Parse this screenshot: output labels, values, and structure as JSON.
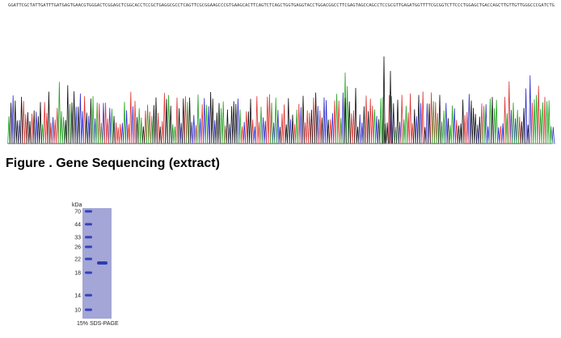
{
  "sequence": {
    "text": "GGATTCGCTATTGATTTGATGAGTGAACGTGGGACTCGGAGCTCGGCACCTCCGCTGAGGCGCCTCAGTTCGCGGAAGCCCGTGAAGCACTTCAGTCTCAGCTGGTGAGGTACCTGGACGGCCTTCGAGTAGCCAGCCTCCGCGTTGAGATGGTTTTCGCGGTCTTCCCTGGAGCTGACCAGCTTGTTGTTGGGCCCGATCTG"
  },
  "caption": {
    "text": "Figure . Gene Sequencing (extract)"
  },
  "gel": {
    "unit": "kDa",
    "markers": [
      "70",
      "44",
      "33",
      "26",
      "22",
      "18",
      "14",
      "10"
    ],
    "label": "15% SDS-PAGE"
  }
}
